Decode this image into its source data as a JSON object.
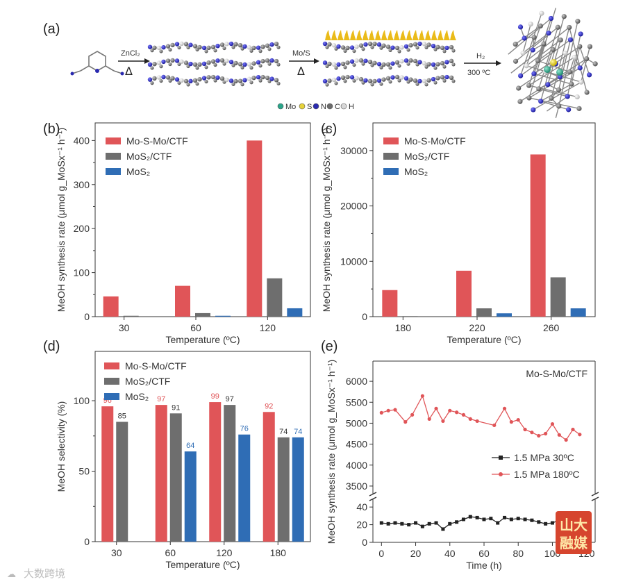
{
  "colors": {
    "red": "#e05558",
    "gray": "#6e6e6e",
    "blue": "#2f6db5",
    "dark": "#222222",
    "ligand": "#e8b400"
  },
  "panel_a": {
    "label": "(a)",
    "step1_reagent": "ZnCl₂",
    "step1_cond": "Δ",
    "step2_reagent": "Mo/S",
    "step2_cond": "Δ",
    "step3_reagent": "H₂",
    "step3_cond": "300 ºC",
    "legend": [
      {
        "symbol_color": "#2aa58a",
        "label": "Mo"
      },
      {
        "symbol_color": "#e6d23a",
        "label": "S"
      },
      {
        "symbol_color": "#2a2ab0",
        "label": "N"
      },
      {
        "symbol_color": "#6b6b6b",
        "label": "C"
      },
      {
        "symbol_color": "#d8d8d8",
        "label": "H"
      }
    ]
  },
  "chart_data": [
    {
      "panel": "(b)",
      "type": "bar",
      "categories": [
        "30",
        "60",
        "120"
      ],
      "series": [
        {
          "name": "Mo-S-Mo/CTF",
          "color": "#e05558",
          "values": [
            46,
            70,
            400
          ]
        },
        {
          "name": "MoS₂/CTF",
          "color": "#6e6e6e",
          "values": [
            2,
            8,
            87
          ]
        },
        {
          "name": "MoS₂",
          "color": "#2f6db5",
          "values": [
            0,
            2,
            19
          ]
        }
      ],
      "legend_position": "top-left",
      "xlabel": "Temperature (ºC)",
      "ylabel": "MeOH synthesis rate (μmol g_MoSx⁻¹ h⁻¹)",
      "ylim": [
        0,
        440
      ],
      "yticks": [
        0,
        100,
        200,
        300,
        400
      ]
    },
    {
      "panel": "(c)",
      "type": "bar",
      "categories": [
        "180",
        "220",
        "260"
      ],
      "series": [
        {
          "name": "Mo-S-Mo/CTF",
          "color": "#e05558",
          "values": [
            4800,
            8300,
            29300
          ]
        },
        {
          "name": "MoS₂/CTF",
          "color": "#6e6e6e",
          "values": [
            100,
            1500,
            7100
          ]
        },
        {
          "name": "MoS₂",
          "color": "#2f6db5",
          "values": [
            0,
            600,
            1500
          ]
        }
      ],
      "legend_position": "top-left",
      "xlabel": "Temperature (ºC)",
      "ylabel": "MeOH synthesis rate (μmol g_MoSx⁻¹ h⁻¹)",
      "ylim": [
        0,
        35000
      ],
      "yticks": [
        0,
        10000,
        20000,
        30000
      ]
    },
    {
      "panel": "(d)",
      "type": "bar",
      "categories": [
        "30",
        "60",
        "120",
        "180"
      ],
      "series": [
        {
          "name": "Mo-S-Mo/CTF",
          "color": "#e05558",
          "values": [
            96,
            97,
            99,
            92
          ]
        },
        {
          "name": "MoS₂/CTF",
          "color": "#6e6e6e",
          "values": [
            85,
            91,
            97,
            74
          ]
        },
        {
          "name": "MoS₂",
          "color": "#2f6db5",
          "values": [
            null,
            64,
            76,
            74
          ]
        }
      ],
      "data_labels": [
        [
          "96",
          "85",
          ""
        ],
        [
          "97",
          "91",
          "64"
        ],
        [
          "99",
          "97",
          "76"
        ],
        [
          "92",
          "74",
          "74"
        ]
      ],
      "legend_position": "top-left",
      "xlabel": "Temperature (ºC)",
      "ylabel": "MeOH selectivity (%)",
      "ylim": [
        0,
        135
      ],
      "yticks": [
        0,
        50,
        100
      ]
    },
    {
      "panel": "(e)",
      "type": "line",
      "title": "Mo-S-Mo/CTF",
      "xlabel": "Time (h)",
      "ylabel": "MeOH synthesis rate (μmol g_MoSx⁻¹ h⁻¹)",
      "xlim": [
        -5,
        125
      ],
      "xticks": [
        0,
        20,
        40,
        60,
        80,
        100,
        120
      ],
      "y_broken": true,
      "ylim_lower": [
        0,
        48
      ],
      "yticks_lower": [
        0,
        20,
        40
      ],
      "ylim_upper": [
        3300,
        6300
      ],
      "yticks_upper": [
        3500,
        4000,
        4500,
        5000,
        5500,
        6000
      ],
      "legend_position": "right",
      "series": [
        {
          "name": "1.5 MPa 30ºC",
          "color": "#222222",
          "marker": "square",
          "x": [
            0,
            4,
            8,
            12,
            16,
            20,
            24,
            28,
            32,
            36,
            40,
            44,
            48,
            52,
            56,
            60,
            64,
            68,
            72,
            76,
            80,
            84,
            88,
            92,
            96,
            100,
            104,
            108,
            112,
            116,
            120
          ],
          "y": [
            22,
            21,
            22,
            21,
            20,
            22,
            18,
            21,
            22,
            15,
            21,
            23,
            26,
            29,
            28,
            26,
            27,
            22,
            28,
            26,
            27,
            26,
            25,
            23,
            21,
            22,
            25,
            22,
            23,
            24,
            25
          ]
        },
        {
          "name": "1.5 MPa 180ºC",
          "color": "#e05558",
          "marker": "circle",
          "x": [
            0,
            4,
            8,
            14,
            18,
            24,
            28,
            32,
            36,
            40,
            44,
            48,
            52,
            56,
            66,
            72,
            76,
            80,
            84,
            88,
            92,
            96,
            100,
            104,
            108,
            112,
            116
          ],
          "y": [
            5250,
            5300,
            5320,
            5030,
            5200,
            5650,
            5100,
            5350,
            5050,
            5300,
            5260,
            5200,
            5100,
            5050,
            4950,
            5350,
            5030,
            5080,
            4850,
            4780,
            4700,
            4750,
            4980,
            4720,
            4600,
            4850,
            4730
          ]
        }
      ]
    }
  ],
  "watermark": {
    "left_text": "大数跨境",
    "stamp_top": "山大",
    "stamp_bottom": "融媒"
  }
}
